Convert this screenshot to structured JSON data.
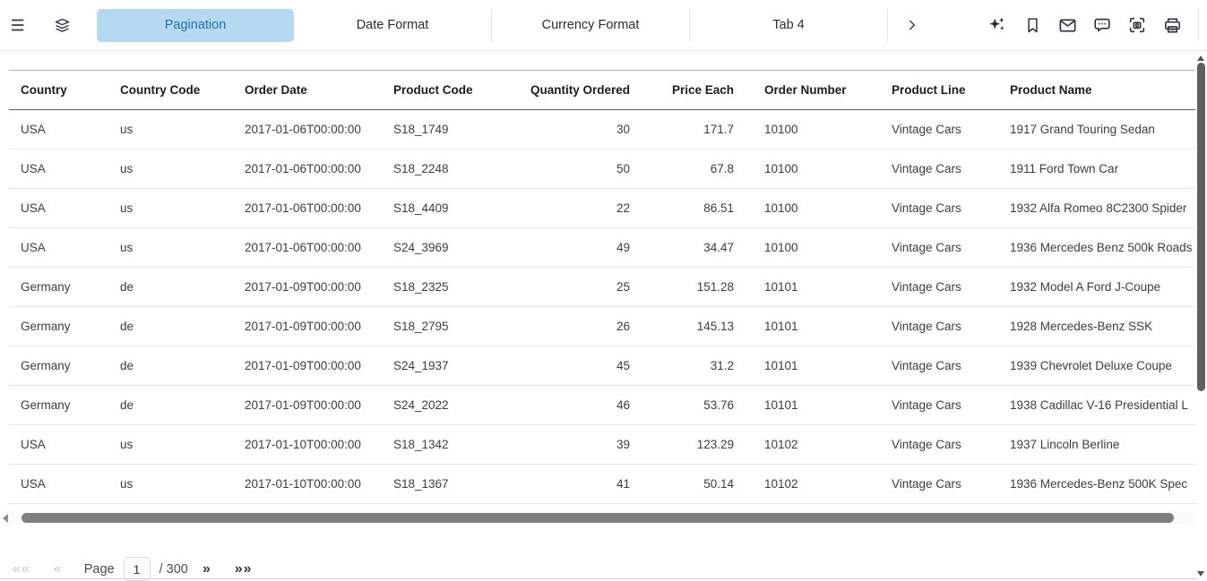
{
  "colors": {
    "active_tab_bg": "#b5d9f0",
    "active_tab_text": "#2471ab",
    "icon_dark": "#343a43",
    "scrollbar_thumb": "#7f7f7f"
  },
  "toolbar": {
    "tabs": [
      {
        "label": "Pagination",
        "active": true
      },
      {
        "label": "Date Format",
        "active": false
      },
      {
        "label": "Currency Format",
        "active": false
      },
      {
        "label": "Tab 4",
        "active": false
      }
    ]
  },
  "table": {
    "columns": [
      {
        "key": "country",
        "label": "Country"
      },
      {
        "key": "country_code",
        "label": "Country Code"
      },
      {
        "key": "order_date",
        "label": "Order Date"
      },
      {
        "key": "product_code",
        "label": "Product Code"
      },
      {
        "key": "quantity_ordered",
        "label": "Quantity Ordered"
      },
      {
        "key": "price_each",
        "label": "Price Each"
      },
      {
        "key": "order_number",
        "label": "Order Number"
      },
      {
        "key": "product_line",
        "label": "Product Line"
      },
      {
        "key": "product_name",
        "label": "Product Name"
      }
    ],
    "rows": [
      {
        "country": "USA",
        "country_code": "us",
        "order_date": "2017-01-06T00:00:00",
        "product_code": "S18_1749",
        "quantity_ordered": "30",
        "price_each": "171.7",
        "order_number": "10100",
        "product_line": "Vintage Cars",
        "product_name": "1917 Grand Touring Sedan"
      },
      {
        "country": "USA",
        "country_code": "us",
        "order_date": "2017-01-06T00:00:00",
        "product_code": "S18_2248",
        "quantity_ordered": "50",
        "price_each": "67.8",
        "order_number": "10100",
        "product_line": "Vintage Cars",
        "product_name": "1911 Ford Town Car"
      },
      {
        "country": "USA",
        "country_code": "us",
        "order_date": "2017-01-06T00:00:00",
        "product_code": "S18_4409",
        "quantity_ordered": "22",
        "price_each": "86.51",
        "order_number": "10100",
        "product_line": "Vintage Cars",
        "product_name": "1932 Alfa Romeo 8C2300 Spider"
      },
      {
        "country": "USA",
        "country_code": "us",
        "order_date": "2017-01-06T00:00:00",
        "product_code": "S24_3969",
        "quantity_ordered": "49",
        "price_each": "34.47",
        "order_number": "10100",
        "product_line": "Vintage Cars",
        "product_name": "1936 Mercedes Benz 500k Roads"
      },
      {
        "country": "Germany",
        "country_code": "de",
        "order_date": "2017-01-09T00:00:00",
        "product_code": "S18_2325",
        "quantity_ordered": "25",
        "price_each": "151.28",
        "order_number": "10101",
        "product_line": "Vintage Cars",
        "product_name": "1932 Model A Ford J-Coupe"
      },
      {
        "country": "Germany",
        "country_code": "de",
        "order_date": "2017-01-09T00:00:00",
        "product_code": "S18_2795",
        "quantity_ordered": "26",
        "price_each": "145.13",
        "order_number": "10101",
        "product_line": "Vintage Cars",
        "product_name": "1928 Mercedes-Benz SSK"
      },
      {
        "country": "Germany",
        "country_code": "de",
        "order_date": "2017-01-09T00:00:00",
        "product_code": "S24_1937",
        "quantity_ordered": "45",
        "price_each": "31.2",
        "order_number": "10101",
        "product_line": "Vintage Cars",
        "product_name": "1939 Chevrolet Deluxe Coupe"
      },
      {
        "country": "Germany",
        "country_code": "de",
        "order_date": "2017-01-09T00:00:00",
        "product_code": "S24_2022",
        "quantity_ordered": "46",
        "price_each": "53.76",
        "order_number": "10101",
        "product_line": "Vintage Cars",
        "product_name": "1938 Cadillac V-16 Presidential L"
      },
      {
        "country": "USA",
        "country_code": "us",
        "order_date": "2017-01-10T00:00:00",
        "product_code": "S18_1342",
        "quantity_ordered": "39",
        "price_each": "123.29",
        "order_number": "10102",
        "product_line": "Vintage Cars",
        "product_name": "1937 Lincoln Berline"
      },
      {
        "country": "USA",
        "country_code": "us",
        "order_date": "2017-01-10T00:00:00",
        "product_code": "S18_1367",
        "quantity_ordered": "41",
        "price_each": "50.14",
        "order_number": "10102",
        "product_line": "Vintage Cars",
        "product_name": "1936 Mercedes-Benz 500K Spec"
      }
    ]
  },
  "pagination": {
    "first_label": "««",
    "prev_label": "«",
    "page_label": "Page",
    "current_page": "1",
    "separator": "/",
    "total_pages": "300",
    "next_label": "»",
    "last_label": "»»"
  }
}
